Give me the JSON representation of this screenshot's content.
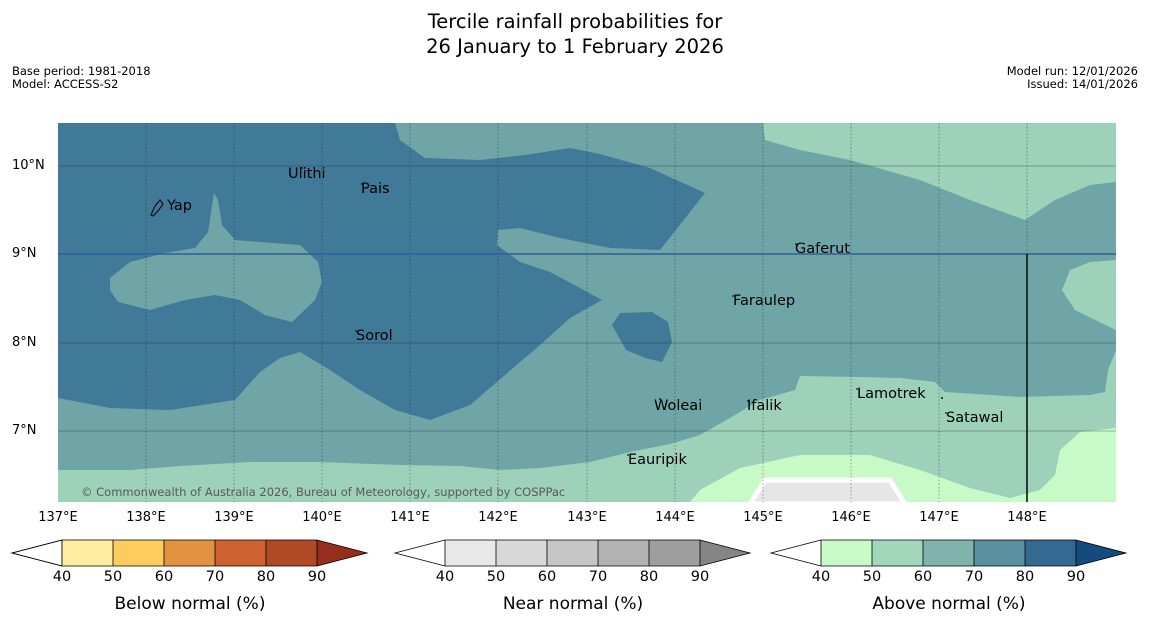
{
  "title_line1": "Tercile rainfall probabilities for",
  "title_line2": "26 January to 1 February 2026",
  "meta_left": {
    "base_period": "Base period: 1981-2018",
    "model": "Model: ACCESS-S2"
  },
  "meta_right": {
    "model_run": "Model run: 12/01/2026",
    "issued": "Issued: 14/01/2026"
  },
  "map": {
    "lat_labels": [
      "10°N",
      "9°N",
      "8°N",
      "7°N"
    ],
    "lon_labels": [
      "137°E",
      "138°E",
      "139°E",
      "140°E",
      "141°E",
      "142°E",
      "143°E",
      "144°E",
      "145°E",
      "146°E",
      "147°E",
      "148°E"
    ],
    "places": [
      "Yap",
      "Ulithi",
      "Pais",
      "Gaferut",
      "Faraulep",
      "Sorol",
      "Woleai",
      "Ifalik",
      "Lamotrek",
      "Satawal",
      "Eauripik"
    ],
    "copyright": "© Commonwealth of Australia 2026, Bureau of Meteorology, supported by COSPPac",
    "colors": {
      "dark": "#417a99",
      "mid": "#6fa5a6",
      "light": "#9dd1b9",
      "pale": "#c8fac8",
      "ocean_line": "#2f5f9a"
    }
  },
  "colorbars": [
    {
      "name": "below",
      "title": "Below normal (%)",
      "ticks": [
        "40",
        "50",
        "60",
        "70",
        "80",
        "90"
      ],
      "colors": [
        "#ffeda0",
        "#fecc5c",
        "#e3923f",
        "#cf6030",
        "#b04a25",
        "#962e1e"
      ]
    },
    {
      "name": "near",
      "title": "Near normal (%)",
      "ticks": [
        "40",
        "50",
        "60",
        "70",
        "80",
        "90"
      ],
      "colors": [
        "#e8e8e8",
        "#d8d8d8",
        "#c6c6c6",
        "#b2b2b2",
        "#9e9e9e",
        "#858585"
      ]
    },
    {
      "name": "above",
      "title": "Above normal (%)",
      "ticks": [
        "40",
        "50",
        "60",
        "70",
        "80",
        "90"
      ],
      "colors": [
        "#c8fac8",
        "#a2d7bc",
        "#80b3ab",
        "#5a8fa0",
        "#366992",
        "#154a7f"
      ]
    }
  ]
}
